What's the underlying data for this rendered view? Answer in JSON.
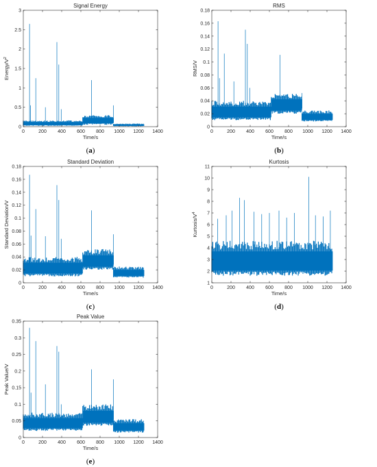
{
  "chart_data": [
    {
      "type": "line",
      "title": "Signal Energy",
      "xlabel": "Time/s",
      "ylabel_base": "Energy/V",
      "ylabel_sup": "2",
      "caption_letter": "a",
      "xlim": [
        0,
        1400
      ],
      "ylim": [
        0,
        3
      ],
      "xticks": [
        0,
        200,
        400,
        600,
        800,
        1000,
        1200,
        1400
      ],
      "yticks": [
        0,
        0.5,
        1,
        1.5,
        2,
        2.5,
        3
      ],
      "ytick_labels": [
        "0",
        "0.5",
        "1",
        "1.5",
        "2",
        "2.5",
        "3"
      ],
      "data_xmax": 1260,
      "color": "#0072BD",
      "bands": [
        {
          "x": [
            0,
            620
          ],
          "low": 0.02,
          "high": 0.16
        },
        {
          "x": [
            620,
            940
          ],
          "low": 0.05,
          "high": 0.3
        },
        {
          "x": [
            940,
            1260
          ],
          "low": 0.01,
          "high": 0.08
        }
      ],
      "spikes": [
        {
          "x": 65,
          "y": 2.65
        },
        {
          "x": 75,
          "y": 0.55
        },
        {
          "x": 130,
          "y": 1.25
        },
        {
          "x": 230,
          "y": 0.5
        },
        {
          "x": 350,
          "y": 2.18
        },
        {
          "x": 370,
          "y": 1.6
        },
        {
          "x": 395,
          "y": 0.45
        },
        {
          "x": 710,
          "y": 1.2
        },
        {
          "x": 940,
          "y": 0.55
        }
      ]
    },
    {
      "type": "line",
      "title": "RMS",
      "xlabel": "Time/s",
      "ylabel_base": "RMS/V",
      "ylabel_sup": "",
      "caption_letter": "b",
      "xlim": [
        0,
        1400
      ],
      "ylim": [
        0,
        0.18
      ],
      "xticks": [
        0,
        200,
        400,
        600,
        800,
        1000,
        1200,
        1400
      ],
      "yticks": [
        0,
        0.02,
        0.04,
        0.06,
        0.08,
        0.1,
        0.12,
        0.14,
        0.16,
        0.18
      ],
      "ytick_labels": [
        "0",
        "0.02",
        "0.04",
        "0.06",
        "0.08",
        "0.1",
        "0.12",
        "0.14",
        "0.16",
        "0.18"
      ],
      "data_xmax": 1260,
      "color": "#0072BD",
      "bands": [
        {
          "x": [
            0,
            620
          ],
          "low": 0.01,
          "high": 0.04
        },
        {
          "x": [
            620,
            940
          ],
          "low": 0.02,
          "high": 0.052
        },
        {
          "x": [
            940,
            1260
          ],
          "low": 0.008,
          "high": 0.025
        }
      ],
      "spikes": [
        {
          "x": 65,
          "y": 0.163
        },
        {
          "x": 80,
          "y": 0.075
        },
        {
          "x": 130,
          "y": 0.113
        },
        {
          "x": 230,
          "y": 0.07
        },
        {
          "x": 350,
          "y": 0.15
        },
        {
          "x": 370,
          "y": 0.128
        },
        {
          "x": 395,
          "y": 0.06
        },
        {
          "x": 710,
          "y": 0.111
        },
        {
          "x": 940,
          "y": 0.052
        }
      ]
    },
    {
      "type": "line",
      "title": "Standard Deviation",
      "xlabel": "Time/s",
      "ylabel_base": "Standard Deviation/V",
      "ylabel_sup": "",
      "caption_letter": "c",
      "xlim": [
        0,
        1400
      ],
      "ylim": [
        0,
        0.18
      ],
      "xticks": [
        0,
        200,
        400,
        600,
        800,
        1000,
        1200,
        1400
      ],
      "yticks": [
        0,
        0.02,
        0.04,
        0.06,
        0.08,
        0.1,
        0.12,
        0.14,
        0.16,
        0.18
      ],
      "ytick_labels": [
        "0",
        "0.02",
        "0.04",
        "0.06",
        "0.08",
        "0.1",
        "0.12",
        "0.14",
        "0.16",
        "0.18"
      ],
      "data_xmax": 1260,
      "color": "#0072BD",
      "bands": [
        {
          "x": [
            0,
            620
          ],
          "low": 0.01,
          "high": 0.04
        },
        {
          "x": [
            620,
            940
          ],
          "low": 0.02,
          "high": 0.052
        },
        {
          "x": [
            940,
            1260
          ],
          "low": 0.008,
          "high": 0.025
        }
      ],
      "spikes": [
        {
          "x": 65,
          "y": 0.167
        },
        {
          "x": 80,
          "y": 0.073
        },
        {
          "x": 130,
          "y": 0.114
        },
        {
          "x": 230,
          "y": 0.072
        },
        {
          "x": 350,
          "y": 0.151
        },
        {
          "x": 370,
          "y": 0.128
        },
        {
          "x": 395,
          "y": 0.068
        },
        {
          "x": 710,
          "y": 0.112
        },
        {
          "x": 940,
          "y": 0.075
        }
      ]
    },
    {
      "type": "line",
      "title": "Kurtosis",
      "xlabel": "Time/s",
      "ylabel_base": "Kurtosis/V",
      "ylabel_sup": "4",
      "caption_letter": "d",
      "xlim": [
        0,
        1400
      ],
      "ylim": [
        1,
        11
      ],
      "xticks": [
        0,
        200,
        400,
        600,
        800,
        1000,
        1200,
        1400
      ],
      "yticks": [
        1,
        2,
        3,
        4,
        5,
        6,
        7,
        8,
        9,
        10,
        11
      ],
      "ytick_labels": [
        "1",
        "2",
        "3",
        "4",
        "5",
        "6",
        "7",
        "8",
        "9",
        "10",
        "11"
      ],
      "data_xmax": 1260,
      "color": "#0072BD",
      "bands": [
        {
          "x": [
            0,
            1260
          ],
          "low": 1.6,
          "high": 4.6
        }
      ],
      "spikes": [
        {
          "x": 60,
          "y": 6.5
        },
        {
          "x": 150,
          "y": 6.8
        },
        {
          "x": 210,
          "y": 7.2
        },
        {
          "x": 290,
          "y": 8.3
        },
        {
          "x": 340,
          "y": 8.1
        },
        {
          "x": 440,
          "y": 7.1
        },
        {
          "x": 520,
          "y": 6.9
        },
        {
          "x": 600,
          "y": 7.0
        },
        {
          "x": 700,
          "y": 7.2
        },
        {
          "x": 780,
          "y": 6.6
        },
        {
          "x": 860,
          "y": 7.0
        },
        {
          "x": 1010,
          "y": 10.1
        },
        {
          "x": 1080,
          "y": 6.8
        },
        {
          "x": 1160,
          "y": 6.7
        },
        {
          "x": 1235,
          "y": 7.2
        }
      ]
    },
    {
      "type": "line",
      "title": "Peak Value",
      "xlabel": "Time/s",
      "ylabel_base": "Peak Value/V",
      "ylabel_sup": "",
      "caption_letter": "e",
      "xlim": [
        0,
        1400
      ],
      "ylim": [
        0,
        0.35
      ],
      "xticks": [
        0,
        200,
        400,
        600,
        800,
        1000,
        1200,
        1400
      ],
      "yticks": [
        0,
        0.05,
        0.1,
        0.15,
        0.2,
        0.25,
        0.3,
        0.35
      ],
      "ytick_labels": [
        "0",
        "0.05",
        "0.1",
        "0.15",
        "0.2",
        "0.25",
        "0.3",
        "0.35"
      ],
      "data_xmax": 1260,
      "color": "#0072BD",
      "bands": [
        {
          "x": [
            0,
            620
          ],
          "low": 0.02,
          "high": 0.075
        },
        {
          "x": [
            620,
            940
          ],
          "low": 0.035,
          "high": 0.1
        },
        {
          "x": [
            940,
            1260
          ],
          "low": 0.015,
          "high": 0.055
        }
      ],
      "spikes": [
        {
          "x": 65,
          "y": 0.33
        },
        {
          "x": 80,
          "y": 0.135
        },
        {
          "x": 130,
          "y": 0.29
        },
        {
          "x": 230,
          "y": 0.16
        },
        {
          "x": 350,
          "y": 0.275
        },
        {
          "x": 370,
          "y": 0.258
        },
        {
          "x": 395,
          "y": 0.1
        },
        {
          "x": 710,
          "y": 0.205
        },
        {
          "x": 940,
          "y": 0.175
        }
      ]
    }
  ]
}
